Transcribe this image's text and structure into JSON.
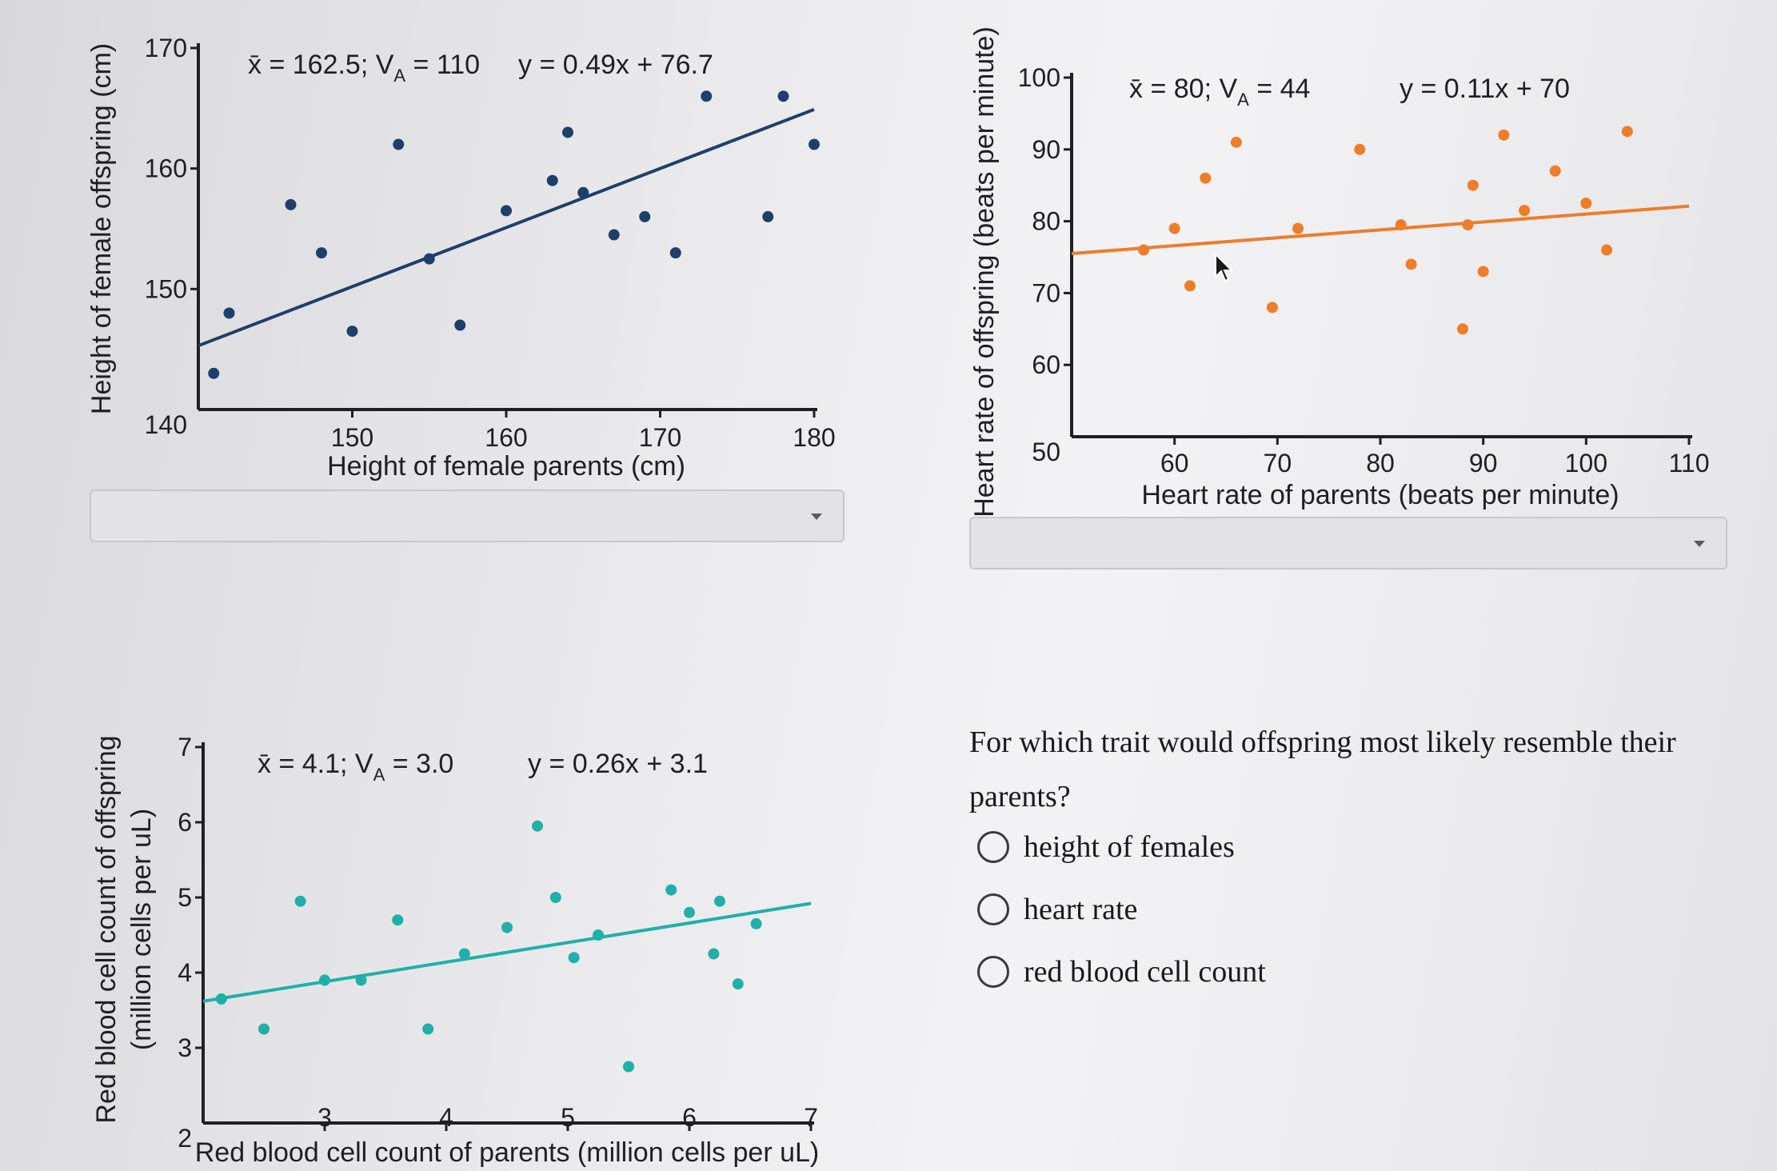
{
  "chart_data": [
    {
      "type": "scatter",
      "stats_label": "x̄ = 162.5; V",
      "stats_sub": "A",
      "stats_value": " = 110",
      "equation": "y = 0.49x + 76.7",
      "xlabel": "Height of female parents (cm)",
      "ylabel": "Height of female offspring (cm)",
      "xlim": [
        140,
        180
      ],
      "ylim": [
        140,
        170
      ],
      "xticks": [
        150,
        160,
        170,
        180
      ],
      "yticks": [
        150,
        160,
        170
      ],
      "y_origin_label": "140",
      "color": "#1f3f6b",
      "trendline": {
        "slope": 0.49,
        "intercept": 76.7
      },
      "points": [
        [
          141,
          143
        ],
        [
          142,
          148
        ],
        [
          146,
          157
        ],
        [
          148,
          153
        ],
        [
          150,
          146.5
        ],
        [
          153,
          162
        ],
        [
          155,
          152.5
        ],
        [
          157,
          147
        ],
        [
          160,
          156.5
        ],
        [
          163,
          159
        ],
        [
          164,
          163
        ],
        [
          165,
          158
        ],
        [
          167,
          154.5
        ],
        [
          169,
          156
        ],
        [
          171,
          153
        ],
        [
          173,
          166
        ],
        [
          177,
          156
        ],
        [
          178,
          166
        ],
        [
          180,
          162
        ]
      ]
    },
    {
      "type": "scatter",
      "stats_label": "x̄ = 80; V",
      "stats_sub": "A",
      "stats_value": " = 44",
      "equation": "y = 0.11x + 70",
      "xlabel": "Heart rate of parents (beats per minute)",
      "ylabel": "Heart rate of offspring (beats per minute)",
      "xlim": [
        50,
        110
      ],
      "ylim": [
        50,
        100
      ],
      "xticks": [
        60,
        70,
        80,
        90,
        100,
        110
      ],
      "yticks": [
        60,
        70,
        80,
        90,
        100
      ],
      "y_origin_label": "50",
      "color": "#ee7d2a",
      "trendline": {
        "slope": 0.11,
        "intercept": 70
      },
      "points": [
        [
          57,
          76
        ],
        [
          60,
          79
        ],
        [
          61.5,
          71
        ],
        [
          63,
          86
        ],
        [
          66,
          91
        ],
        [
          69.5,
          68
        ],
        [
          72,
          79
        ],
        [
          78,
          90
        ],
        [
          82,
          79.5
        ],
        [
          83,
          74
        ],
        [
          88,
          65
        ],
        [
          88.5,
          79.5
        ],
        [
          89,
          85
        ],
        [
          90,
          73
        ],
        [
          92,
          92
        ],
        [
          94,
          81.5
        ],
        [
          97,
          87
        ],
        [
          100,
          82.5
        ],
        [
          102,
          76
        ],
        [
          104,
          92.5
        ]
      ]
    },
    {
      "type": "scatter",
      "stats_label": "x̄ = 4.1; V",
      "stats_sub": "A",
      "stats_value": " = 3.0",
      "equation": "y = 0.26x + 3.1",
      "xlabel": "Red blood cell count of parents (million cells per uL)",
      "ylabel_line1": "Red blood cell count of offspring",
      "ylabel_line2": "(million cells per uL)",
      "xlim": [
        2,
        7
      ],
      "ylim": [
        2,
        7
      ],
      "xticks": [
        3,
        4,
        5,
        6,
        7
      ],
      "yticks": [
        3,
        4,
        5,
        6,
        7
      ],
      "y_origin_label": "2",
      "color": "#1fb0aa",
      "trendline": {
        "slope": 0.26,
        "intercept": 3.1
      },
      "points": [
        [
          2.15,
          3.65
        ],
        [
          2.5,
          3.25
        ],
        [
          2.8,
          4.95
        ],
        [
          3,
          3.9
        ],
        [
          3.3,
          3.9
        ],
        [
          3.6,
          4.7
        ],
        [
          3.85,
          3.25
        ],
        [
          4.15,
          4.25
        ],
        [
          4.5,
          4.6
        ],
        [
          4.75,
          5.95
        ],
        [
          4.9,
          5
        ],
        [
          5.05,
          4.2
        ],
        [
          5.25,
          4.5
        ],
        [
          5.5,
          2.75
        ],
        [
          5.85,
          5.1
        ],
        [
          6,
          4.8
        ],
        [
          6.2,
          4.25
        ],
        [
          6.25,
          4.95
        ],
        [
          6.4,
          3.85
        ],
        [
          6.55,
          4.65
        ]
      ]
    }
  ],
  "question": {
    "text": "For which trait would offspring most likely resemble their parents?",
    "options": [
      "height of females",
      "heart rate",
      "red blood cell count"
    ]
  }
}
